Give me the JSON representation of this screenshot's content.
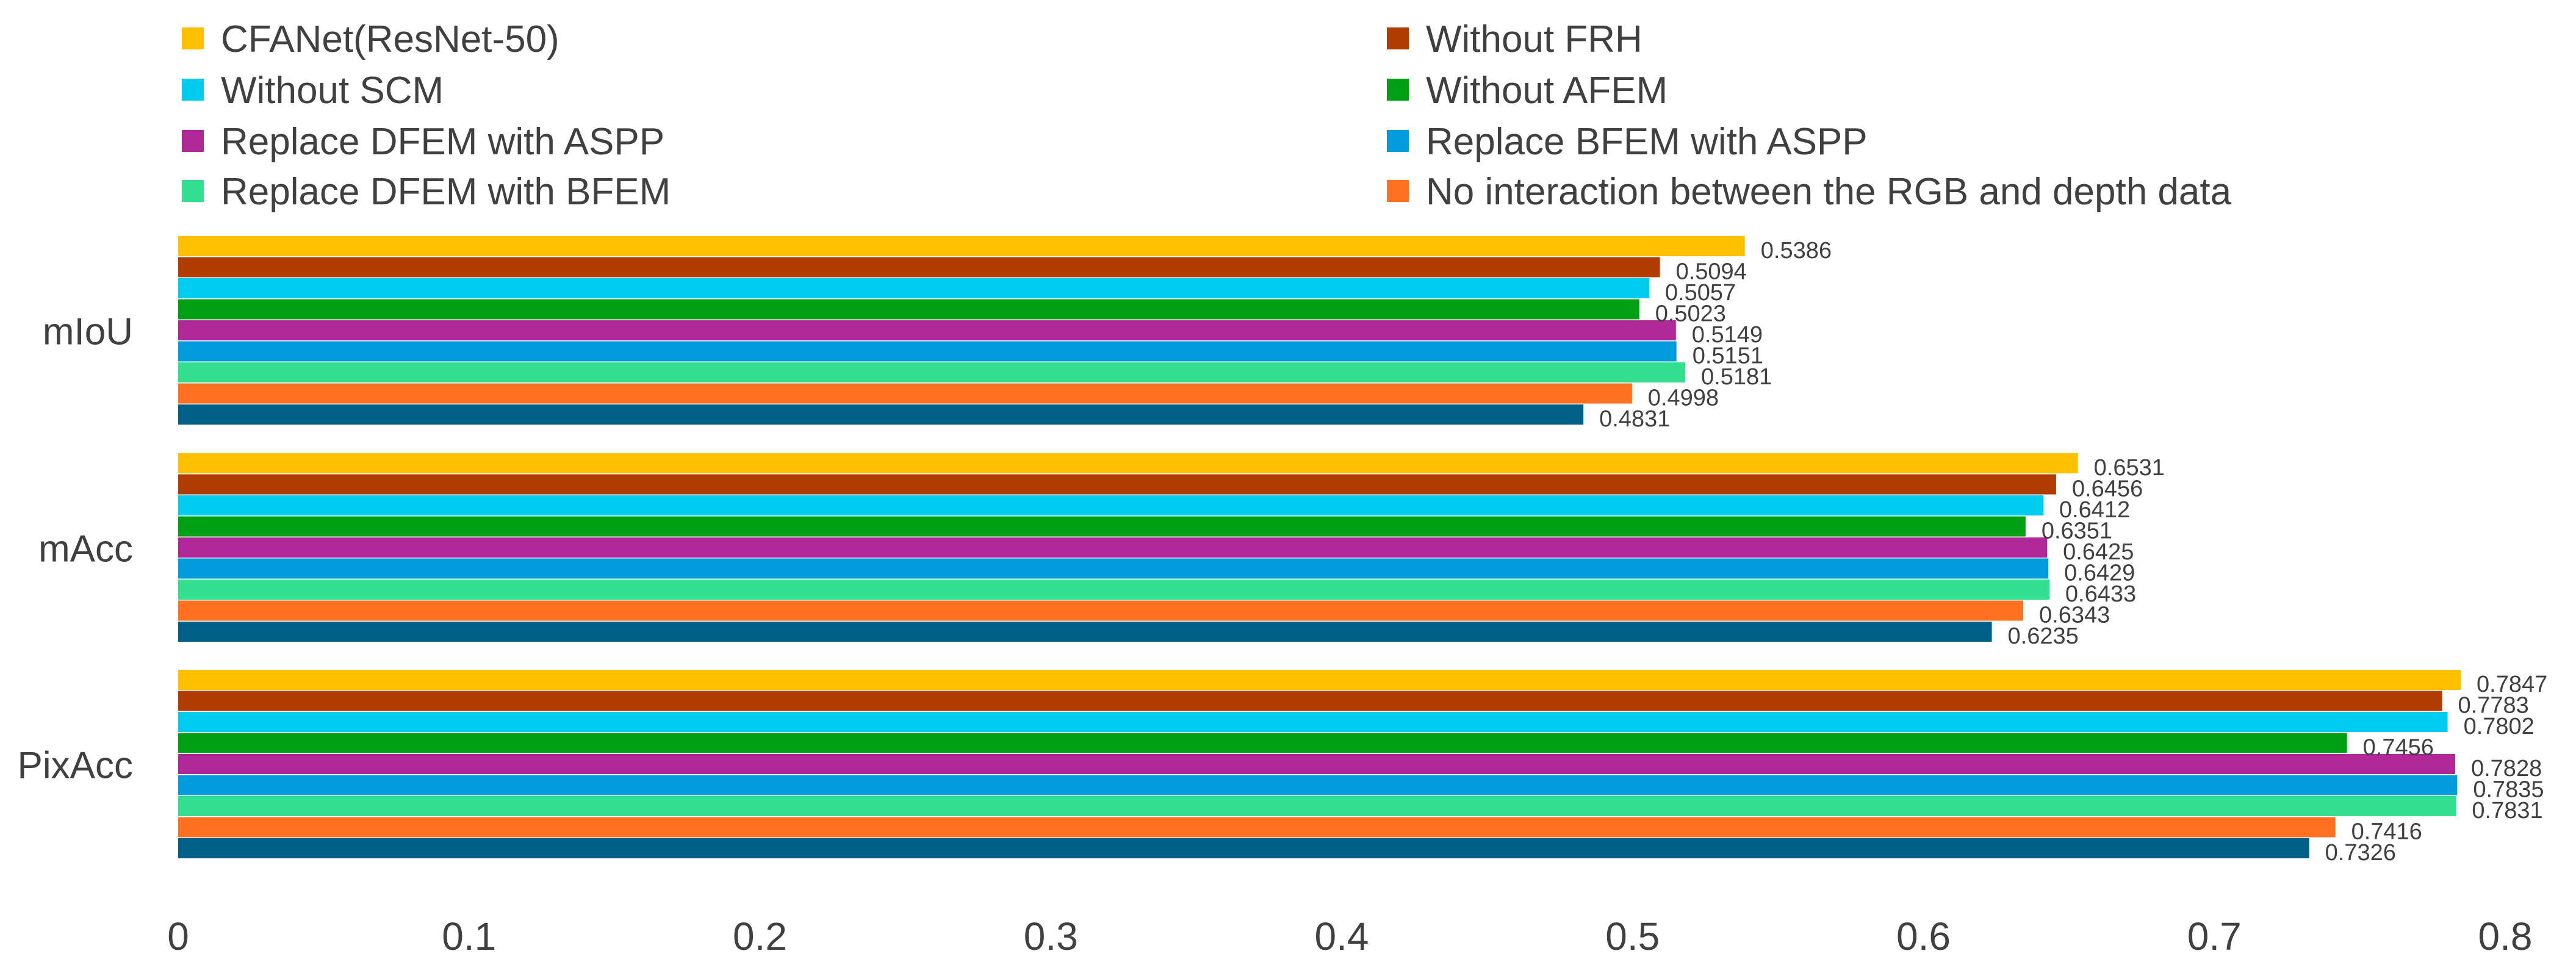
{
  "chart_data": {
    "type": "bar",
    "orientation": "horizontal",
    "categories": [
      "mIoU",
      "mAcc",
      "PixAcc"
    ],
    "series": [
      {
        "name": "CFANet(ResNet-50)",
        "color": "#FFC000",
        "values": [
          0.5386,
          0.6531,
          0.7847
        ]
      },
      {
        "name": "Without FRH",
        "color": "#B03C00",
        "values": [
          0.5094,
          0.6456,
          0.7783
        ]
      },
      {
        "name": "Without SCM",
        "color": "#00CCF0",
        "values": [
          0.5057,
          0.6412,
          0.7802
        ]
      },
      {
        "name": "Without AFEM",
        "color": "#00A014",
        "values": [
          0.5023,
          0.6351,
          0.7456
        ]
      },
      {
        "name": "Replace DFEM with ASPP",
        "color": "#B02898",
        "values": [
          0.5149,
          0.6425,
          0.7828
        ]
      },
      {
        "name": "Replace BFEM with ASPP",
        "color": "#009CDC",
        "values": [
          0.5151,
          0.6429,
          0.7835
        ]
      },
      {
        "name": "Replace DFEM with BFEM",
        "color": "#32E090",
        "values": [
          0.5181,
          0.6433,
          0.7831
        ]
      },
      {
        "name": "No interaction between the RGB and depth data",
        "color": "#FF7020",
        "values": [
          0.4998,
          0.6343,
          0.7416
        ]
      },
      {
        "name": "",
        "color": "#005F86",
        "values": [
          0.4831,
          0.6235,
          0.7326
        ]
      }
    ],
    "xlim": [
      0,
      0.8
    ],
    "xticks": [
      "0",
      "0.1",
      "0.2",
      "0.3",
      "0.4",
      "0.5",
      "0.6",
      "0.7",
      "0.8"
    ],
    "data_labels": [
      [
        "0.5386",
        "0.5094",
        "0.5057",
        "0.5023",
        "0.5149",
        "0.5151",
        "0.5181",
        "0.4998",
        "0.4831"
      ],
      [
        "0.6531",
        "0.6456",
        "0.6412",
        "0.6351",
        "0.6425",
        "0.6429",
        "0.6433",
        "0.6343",
        "0.6235"
      ],
      [
        "0.7847",
        "0.7783",
        "0.7802",
        "0.7456",
        "0.7828",
        "0.7835",
        "0.7831",
        "0.7416",
        "0.7326"
      ]
    ],
    "legend_position": "top",
    "grid": false
  }
}
